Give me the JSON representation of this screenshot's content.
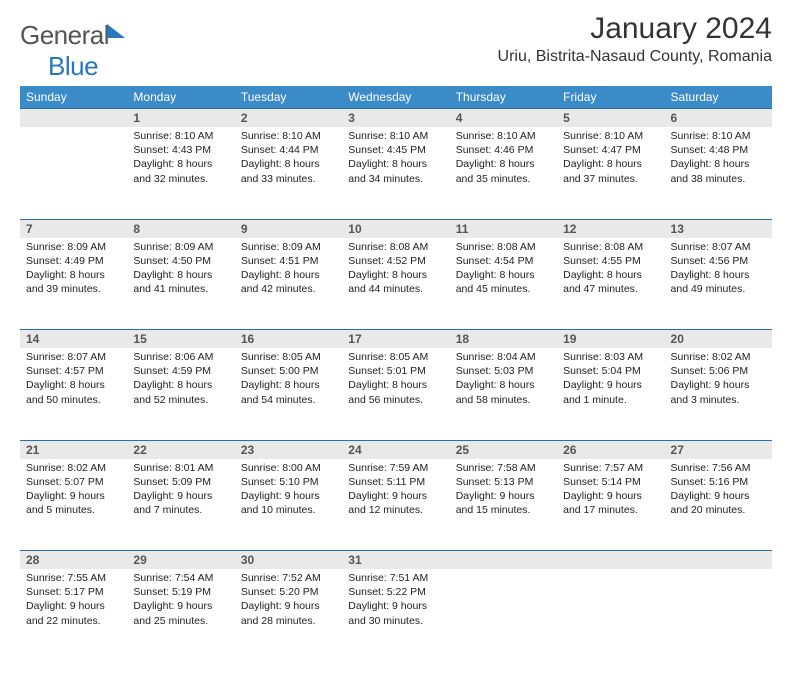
{
  "brand": {
    "part1": "General",
    "part2": "Blue"
  },
  "title": "January 2024",
  "location": "Uriu, Bistrita-Nasaud County, Romania",
  "day_headers": [
    "Sunday",
    "Monday",
    "Tuesday",
    "Wednesday",
    "Thursday",
    "Friday",
    "Saturday"
  ],
  "colors": {
    "header_bg": "#3b8bc9",
    "header_text": "#ffffff",
    "row_divider": "#2a6ea5",
    "daynum_bg": "#e9e9e9",
    "brand_blue": "#2878bd"
  },
  "typography": {
    "title_size_pt": 22,
    "location_size_pt": 12,
    "header_size_pt": 9,
    "body_size_pt": 8
  },
  "weeks": [
    [
      null,
      {
        "n": 1,
        "sunrise": "8:10 AM",
        "sunset": "4:43 PM",
        "daylight": "8 hours and 32 minutes."
      },
      {
        "n": 2,
        "sunrise": "8:10 AM",
        "sunset": "4:44 PM",
        "daylight": "8 hours and 33 minutes."
      },
      {
        "n": 3,
        "sunrise": "8:10 AM",
        "sunset": "4:45 PM",
        "daylight": "8 hours and 34 minutes."
      },
      {
        "n": 4,
        "sunrise": "8:10 AM",
        "sunset": "4:46 PM",
        "daylight": "8 hours and 35 minutes."
      },
      {
        "n": 5,
        "sunrise": "8:10 AM",
        "sunset": "4:47 PM",
        "daylight": "8 hours and 37 minutes."
      },
      {
        "n": 6,
        "sunrise": "8:10 AM",
        "sunset": "4:48 PM",
        "daylight": "8 hours and 38 minutes."
      }
    ],
    [
      {
        "n": 7,
        "sunrise": "8:09 AM",
        "sunset": "4:49 PM",
        "daylight": "8 hours and 39 minutes."
      },
      {
        "n": 8,
        "sunrise": "8:09 AM",
        "sunset": "4:50 PM",
        "daylight": "8 hours and 41 minutes."
      },
      {
        "n": 9,
        "sunrise": "8:09 AM",
        "sunset": "4:51 PM",
        "daylight": "8 hours and 42 minutes."
      },
      {
        "n": 10,
        "sunrise": "8:08 AM",
        "sunset": "4:52 PM",
        "daylight": "8 hours and 44 minutes."
      },
      {
        "n": 11,
        "sunrise": "8:08 AM",
        "sunset": "4:54 PM",
        "daylight": "8 hours and 45 minutes."
      },
      {
        "n": 12,
        "sunrise": "8:08 AM",
        "sunset": "4:55 PM",
        "daylight": "8 hours and 47 minutes."
      },
      {
        "n": 13,
        "sunrise": "8:07 AM",
        "sunset": "4:56 PM",
        "daylight": "8 hours and 49 minutes."
      }
    ],
    [
      {
        "n": 14,
        "sunrise": "8:07 AM",
        "sunset": "4:57 PM",
        "daylight": "8 hours and 50 minutes."
      },
      {
        "n": 15,
        "sunrise": "8:06 AM",
        "sunset": "4:59 PM",
        "daylight": "8 hours and 52 minutes."
      },
      {
        "n": 16,
        "sunrise": "8:05 AM",
        "sunset": "5:00 PM",
        "daylight": "8 hours and 54 minutes."
      },
      {
        "n": 17,
        "sunrise": "8:05 AM",
        "sunset": "5:01 PM",
        "daylight": "8 hours and 56 minutes."
      },
      {
        "n": 18,
        "sunrise": "8:04 AM",
        "sunset": "5:03 PM",
        "daylight": "8 hours and 58 minutes."
      },
      {
        "n": 19,
        "sunrise": "8:03 AM",
        "sunset": "5:04 PM",
        "daylight": "9 hours and 1 minute."
      },
      {
        "n": 20,
        "sunrise": "8:02 AM",
        "sunset": "5:06 PM",
        "daylight": "9 hours and 3 minutes."
      }
    ],
    [
      {
        "n": 21,
        "sunrise": "8:02 AM",
        "sunset": "5:07 PM",
        "daylight": "9 hours and 5 minutes."
      },
      {
        "n": 22,
        "sunrise": "8:01 AM",
        "sunset": "5:09 PM",
        "daylight": "9 hours and 7 minutes."
      },
      {
        "n": 23,
        "sunrise": "8:00 AM",
        "sunset": "5:10 PM",
        "daylight": "9 hours and 10 minutes."
      },
      {
        "n": 24,
        "sunrise": "7:59 AM",
        "sunset": "5:11 PM",
        "daylight": "9 hours and 12 minutes."
      },
      {
        "n": 25,
        "sunrise": "7:58 AM",
        "sunset": "5:13 PM",
        "daylight": "9 hours and 15 minutes."
      },
      {
        "n": 26,
        "sunrise": "7:57 AM",
        "sunset": "5:14 PM",
        "daylight": "9 hours and 17 minutes."
      },
      {
        "n": 27,
        "sunrise": "7:56 AM",
        "sunset": "5:16 PM",
        "daylight": "9 hours and 20 minutes."
      }
    ],
    [
      {
        "n": 28,
        "sunrise": "7:55 AM",
        "sunset": "5:17 PM",
        "daylight": "9 hours and 22 minutes."
      },
      {
        "n": 29,
        "sunrise": "7:54 AM",
        "sunset": "5:19 PM",
        "daylight": "9 hours and 25 minutes."
      },
      {
        "n": 30,
        "sunrise": "7:52 AM",
        "sunset": "5:20 PM",
        "daylight": "9 hours and 28 minutes."
      },
      {
        "n": 31,
        "sunrise": "7:51 AM",
        "sunset": "5:22 PM",
        "daylight": "9 hours and 30 minutes."
      },
      null,
      null,
      null
    ]
  ],
  "labels": {
    "sunrise": "Sunrise:",
    "sunset": "Sunset:",
    "daylight": "Daylight:"
  }
}
